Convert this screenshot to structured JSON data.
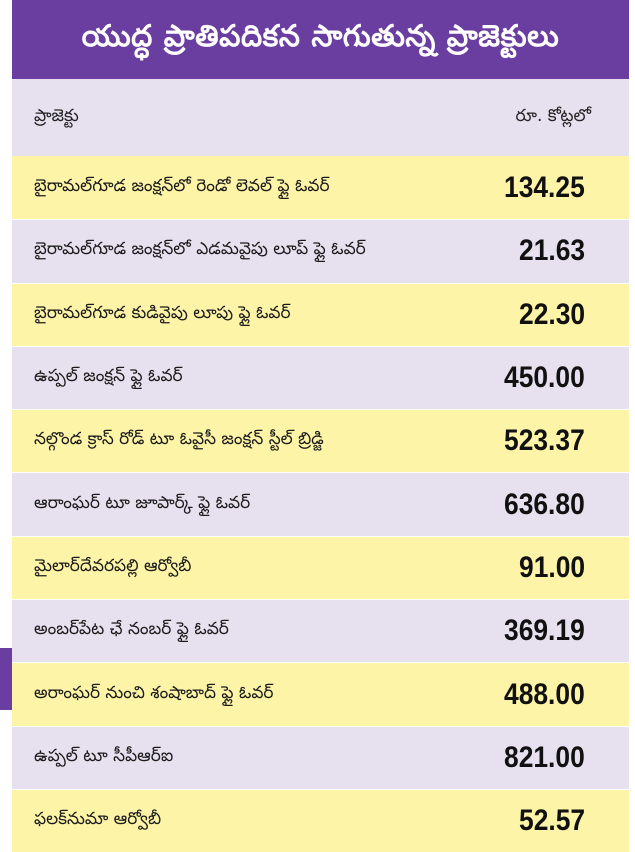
{
  "title": "యుద్ధ ప్రాతిపదికన సాగుతున్న ప్రాజెక్టులు",
  "columns": {
    "project": "ప్రాజెక్టు",
    "amount": "రూ. కోట్లలో"
  },
  "rows": [
    {
      "name": "బైరామల్‌గూడ జంక్షన్‌లో రెండో లెవల్‌ ఫ్లై ఓవర్‌",
      "value": "134.25"
    },
    {
      "name": "బైరామల్‌గూడ జంక్షన్‌లో ఎడమవైపు లూప్‌ ఫ్లై ఓవర్‌",
      "value": "21.63"
    },
    {
      "name": "బైరామల్‌గూడ కుడివైపు లూపు ఫ్లై ఓవర్‌",
      "value": "22.30"
    },
    {
      "name": "ఉప్పల్‌ జంక్షన్‌ ఫ్లై ఓవర్‌",
      "value": "450.00"
    },
    {
      "name": "నల్గొండ క్రాస్‌ రోడ్‌ టూ ఓవైసీ జంక్షన్‌ స్టీల్‌ బ్రిడ్జి",
      "value": "523.37"
    },
    {
      "name": "ఆరాంఘర్‌ టూ జూపార్క్‌ ఫ్లై ఓవర్‌",
      "value": "636.80"
    },
    {
      "name": "మైలార్‌దేవరపల్లి ఆర్వోబీ",
      "value": "91.00"
    },
    {
      "name": "అంబర్‌పేట ఛే నంబర్‌ ఫ్లై ఓవర్‌",
      "value": "369.19"
    },
    {
      "name": "అరాంఘర్‌ నుంచి శంషాబాద్‌ ఫ్లై ఓవర్‌",
      "value": "488.00"
    },
    {
      "name": "ఉప్పల్‌ టూ సీపీఆర్‌ఐ",
      "value": "821.00"
    },
    {
      "name": "ఫలక్‌నుమా ఆర్వోబీ",
      "value": "52.57"
    }
  ],
  "colors": {
    "title_bg": "#6a3ea1",
    "header_bg": "#e6e0ef",
    "yellow_row": "#fdf4a7",
    "lavender_row": "#e6e0ef"
  }
}
